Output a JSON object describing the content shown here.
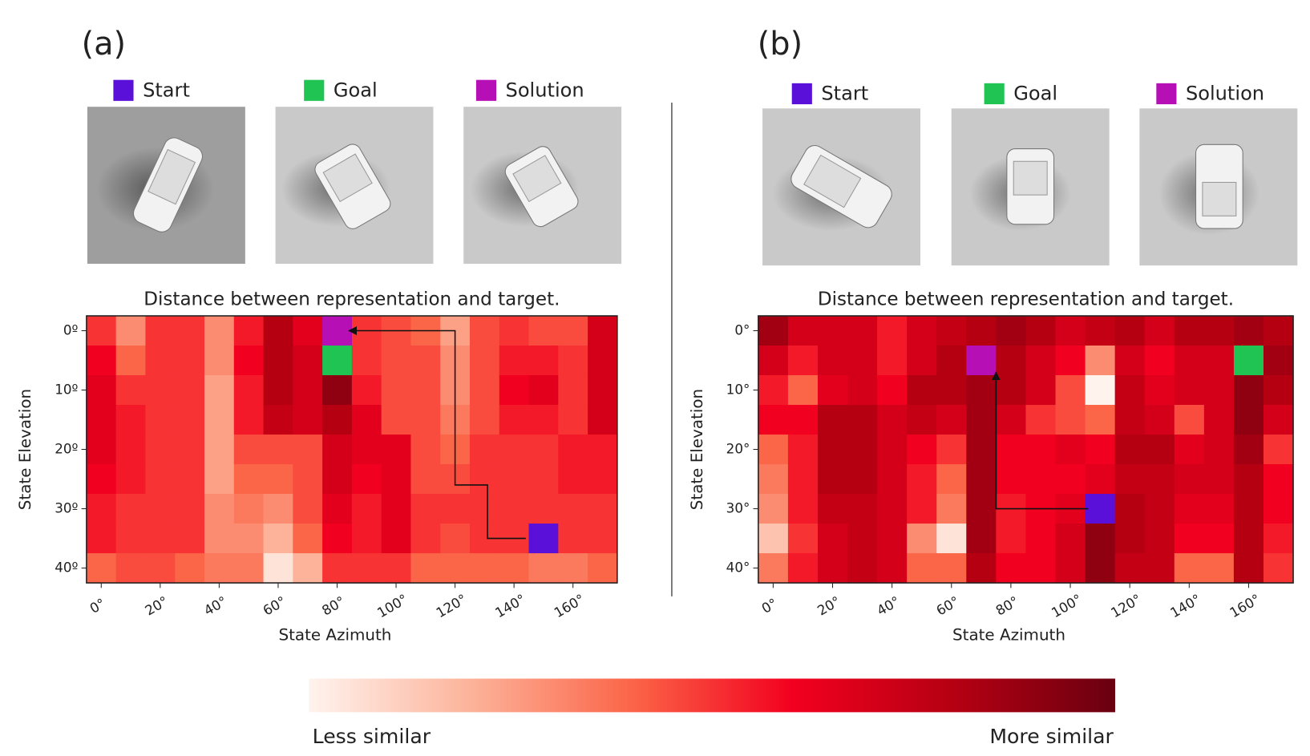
{
  "chart_data": [
    {
      "type": "heatmap",
      "label": "(a)",
      "title": "Distance between representation and target.",
      "x_label": "State Azimuth",
      "y_label": "State Elevation",
      "x": [
        0,
        10,
        20,
        30,
        40,
        50,
        60,
        70,
        80,
        90,
        100,
        110,
        120,
        130,
        140,
        150,
        160,
        170
      ],
      "y": [
        0,
        5,
        10,
        15,
        20,
        25,
        30,
        35,
        40
      ],
      "xlim": [
        -5,
        175
      ],
      "ylim": [
        -2.5,
        42.5
      ],
      "y_inverted": true,
      "xticks": [
        {
          "value": 0,
          "label": "0°"
        },
        {
          "value": 20,
          "label": "20°"
        },
        {
          "value": 40,
          "label": "40°"
        },
        {
          "value": 60,
          "label": "60°"
        },
        {
          "value": 80,
          "label": "80°"
        },
        {
          "value": 100,
          "label": "100°"
        },
        {
          "value": 120,
          "label": "120°"
        },
        {
          "value": 140,
          "label": "140°"
        },
        {
          "value": 160,
          "label": "160°"
        }
      ],
      "yticks": [
        {
          "value": 0,
          "label": "0º"
        },
        {
          "value": 10,
          "label": "10º"
        },
        {
          "value": 20,
          "label": "20º"
        },
        {
          "value": 30,
          "label": "30º"
        },
        {
          "value": 40,
          "label": "40º"
        }
      ],
      "values": [
        [
          0.5,
          0.3,
          0.5,
          0.5,
          0.3,
          0.55,
          0.8,
          0.65,
          0.8,
          0.5,
          0.45,
          0.4,
          0.25,
          0.45,
          0.5,
          0.45,
          0.45,
          0.7
        ],
        [
          0.6,
          0.4,
          0.5,
          0.5,
          0.3,
          0.6,
          0.8,
          0.7,
          0.85,
          0.5,
          0.45,
          0.45,
          0.3,
          0.45,
          0.55,
          0.55,
          0.5,
          0.7
        ],
        [
          0.65,
          0.5,
          0.5,
          0.5,
          0.25,
          0.55,
          0.8,
          0.7,
          0.9,
          0.55,
          0.45,
          0.45,
          0.3,
          0.45,
          0.6,
          0.65,
          0.5,
          0.7
        ],
        [
          0.65,
          0.55,
          0.5,
          0.5,
          0.25,
          0.55,
          0.75,
          0.7,
          0.8,
          0.65,
          0.45,
          0.45,
          0.35,
          0.45,
          0.55,
          0.55,
          0.5,
          0.7
        ],
        [
          0.65,
          0.55,
          0.5,
          0.5,
          0.25,
          0.45,
          0.45,
          0.45,
          0.7,
          0.65,
          0.65,
          0.45,
          0.4,
          0.5,
          0.5,
          0.5,
          0.55,
          0.55
        ],
        [
          0.6,
          0.55,
          0.5,
          0.5,
          0.25,
          0.4,
          0.4,
          0.45,
          0.7,
          0.6,
          0.65,
          0.45,
          0.45,
          0.5,
          0.5,
          0.5,
          0.55,
          0.55
        ],
        [
          0.55,
          0.5,
          0.5,
          0.5,
          0.3,
          0.35,
          0.3,
          0.45,
          0.65,
          0.55,
          0.65,
          0.5,
          0.5,
          0.5,
          0.5,
          0.5,
          0.5,
          0.5
        ],
        [
          0.55,
          0.5,
          0.5,
          0.5,
          0.3,
          0.3,
          0.2,
          0.4,
          0.6,
          0.55,
          0.65,
          0.5,
          0.45,
          0.5,
          0.5,
          0.5,
          0.5,
          0.5
        ],
        [
          0.4,
          0.45,
          0.45,
          0.4,
          0.35,
          0.35,
          0.05,
          0.2,
          0.5,
          0.5,
          0.5,
          0.4,
          0.4,
          0.4,
          0.4,
          0.35,
          0.35,
          0.4
        ]
      ],
      "markers": [
        {
          "name": "Start",
          "color": "#5a10d8",
          "x": 150,
          "y": 35
        },
        {
          "name": "Goal",
          "color": "#1fc452",
          "x": 80,
          "y": 5
        },
        {
          "name": "Solution",
          "color": "#b50fb5",
          "x": 80,
          "y": 0
        }
      ],
      "path": {
        "x": [
          144,
          131,
          131,
          120,
          120,
          84
        ],
        "y": [
          35,
          35,
          26,
          26,
          0,
          0
        ]
      }
    },
    {
      "type": "heatmap",
      "label": "(b)",
      "title": "Distance between representation and target.",
      "x_label": "State Azimuth",
      "y_label": "State Elevation",
      "x": [
        0,
        10,
        20,
        30,
        40,
        50,
        60,
        70,
        80,
        90,
        100,
        110,
        120,
        130,
        140,
        150,
        160,
        170
      ],
      "y": [
        0,
        5,
        10,
        15,
        20,
        25,
        30,
        35,
        40
      ],
      "xlim": [
        -5,
        175
      ],
      "ylim": [
        -2.5,
        42.5
      ],
      "y_inverted": true,
      "xticks": [
        {
          "value": 0,
          "label": "0°"
        },
        {
          "value": 20,
          "label": "20°"
        },
        {
          "value": 40,
          "label": "40°"
        },
        {
          "value": 60,
          "label": "60°"
        },
        {
          "value": 80,
          "label": "80°"
        },
        {
          "value": 100,
          "label": "100°"
        },
        {
          "value": 120,
          "label": "120°"
        },
        {
          "value": 140,
          "label": "140°"
        },
        {
          "value": 160,
          "label": "160°"
        }
      ],
      "yticks": [
        {
          "value": 0,
          "label": "0°"
        },
        {
          "value": 10,
          "label": "10°"
        },
        {
          "value": 20,
          "label": "20°"
        },
        {
          "value": 30,
          "label": "30°"
        },
        {
          "value": 40,
          "label": "40°"
        }
      ],
      "values": [
        [
          0.85,
          0.7,
          0.7,
          0.7,
          0.55,
          0.7,
          0.75,
          0.8,
          0.85,
          0.8,
          0.7,
          0.75,
          0.8,
          0.7,
          0.8,
          0.8,
          0.85,
          0.8
        ],
        [
          0.7,
          0.55,
          0.7,
          0.7,
          0.55,
          0.7,
          0.8,
          0.8,
          0.8,
          0.7,
          0.6,
          0.3,
          0.7,
          0.6,
          0.7,
          0.7,
          0.85,
          0.85
        ],
        [
          0.55,
          0.4,
          0.65,
          0.7,
          0.6,
          0.8,
          0.8,
          0.85,
          0.8,
          0.7,
          0.45,
          0.0,
          0.75,
          0.65,
          0.7,
          0.7,
          0.9,
          0.8
        ],
        [
          0.6,
          0.6,
          0.8,
          0.8,
          0.7,
          0.75,
          0.7,
          0.85,
          0.7,
          0.5,
          0.45,
          0.4,
          0.75,
          0.7,
          0.45,
          0.7,
          0.9,
          0.7
        ],
        [
          0.4,
          0.55,
          0.8,
          0.8,
          0.7,
          0.6,
          0.5,
          0.85,
          0.6,
          0.6,
          0.65,
          0.6,
          0.8,
          0.8,
          0.65,
          0.7,
          0.85,
          0.5
        ],
        [
          0.35,
          0.55,
          0.8,
          0.8,
          0.7,
          0.55,
          0.4,
          0.85,
          0.6,
          0.6,
          0.6,
          0.65,
          0.75,
          0.75,
          0.7,
          0.7,
          0.8,
          0.6
        ],
        [
          0.3,
          0.55,
          0.75,
          0.75,
          0.7,
          0.55,
          0.35,
          0.85,
          0.55,
          0.6,
          0.65,
          0.7,
          0.8,
          0.75,
          0.65,
          0.65,
          0.8,
          0.6
        ],
        [
          0.15,
          0.5,
          0.7,
          0.75,
          0.7,
          0.3,
          0.05,
          0.85,
          0.55,
          0.6,
          0.7,
          0.9,
          0.8,
          0.75,
          0.6,
          0.6,
          0.8,
          0.55
        ],
        [
          0.35,
          0.55,
          0.7,
          0.75,
          0.7,
          0.4,
          0.4,
          0.8,
          0.6,
          0.6,
          0.7,
          0.9,
          0.75,
          0.75,
          0.4,
          0.4,
          0.8,
          0.5
        ]
      ],
      "markers": [
        {
          "name": "Start",
          "color": "#5a10d8",
          "x": 110,
          "y": 30
        },
        {
          "name": "Goal",
          "color": "#1fc452",
          "x": 160,
          "y": 5
        },
        {
          "name": "Solution",
          "color": "#b50fb5",
          "x": 70,
          "y": 5
        }
      ],
      "path": {
        "x": [
          106,
          75,
          75
        ],
        "y": [
          30,
          30,
          7
        ]
      }
    }
  ],
  "colorbar": {
    "low_label": "Less similar",
    "high_label": "More similar",
    "range": [
      0,
      1
    ],
    "colors": [
      "#fff3ee",
      "#fcb39a",
      "#fb6548",
      "#f2001f",
      "#b50012",
      "#690010"
    ]
  }
}
